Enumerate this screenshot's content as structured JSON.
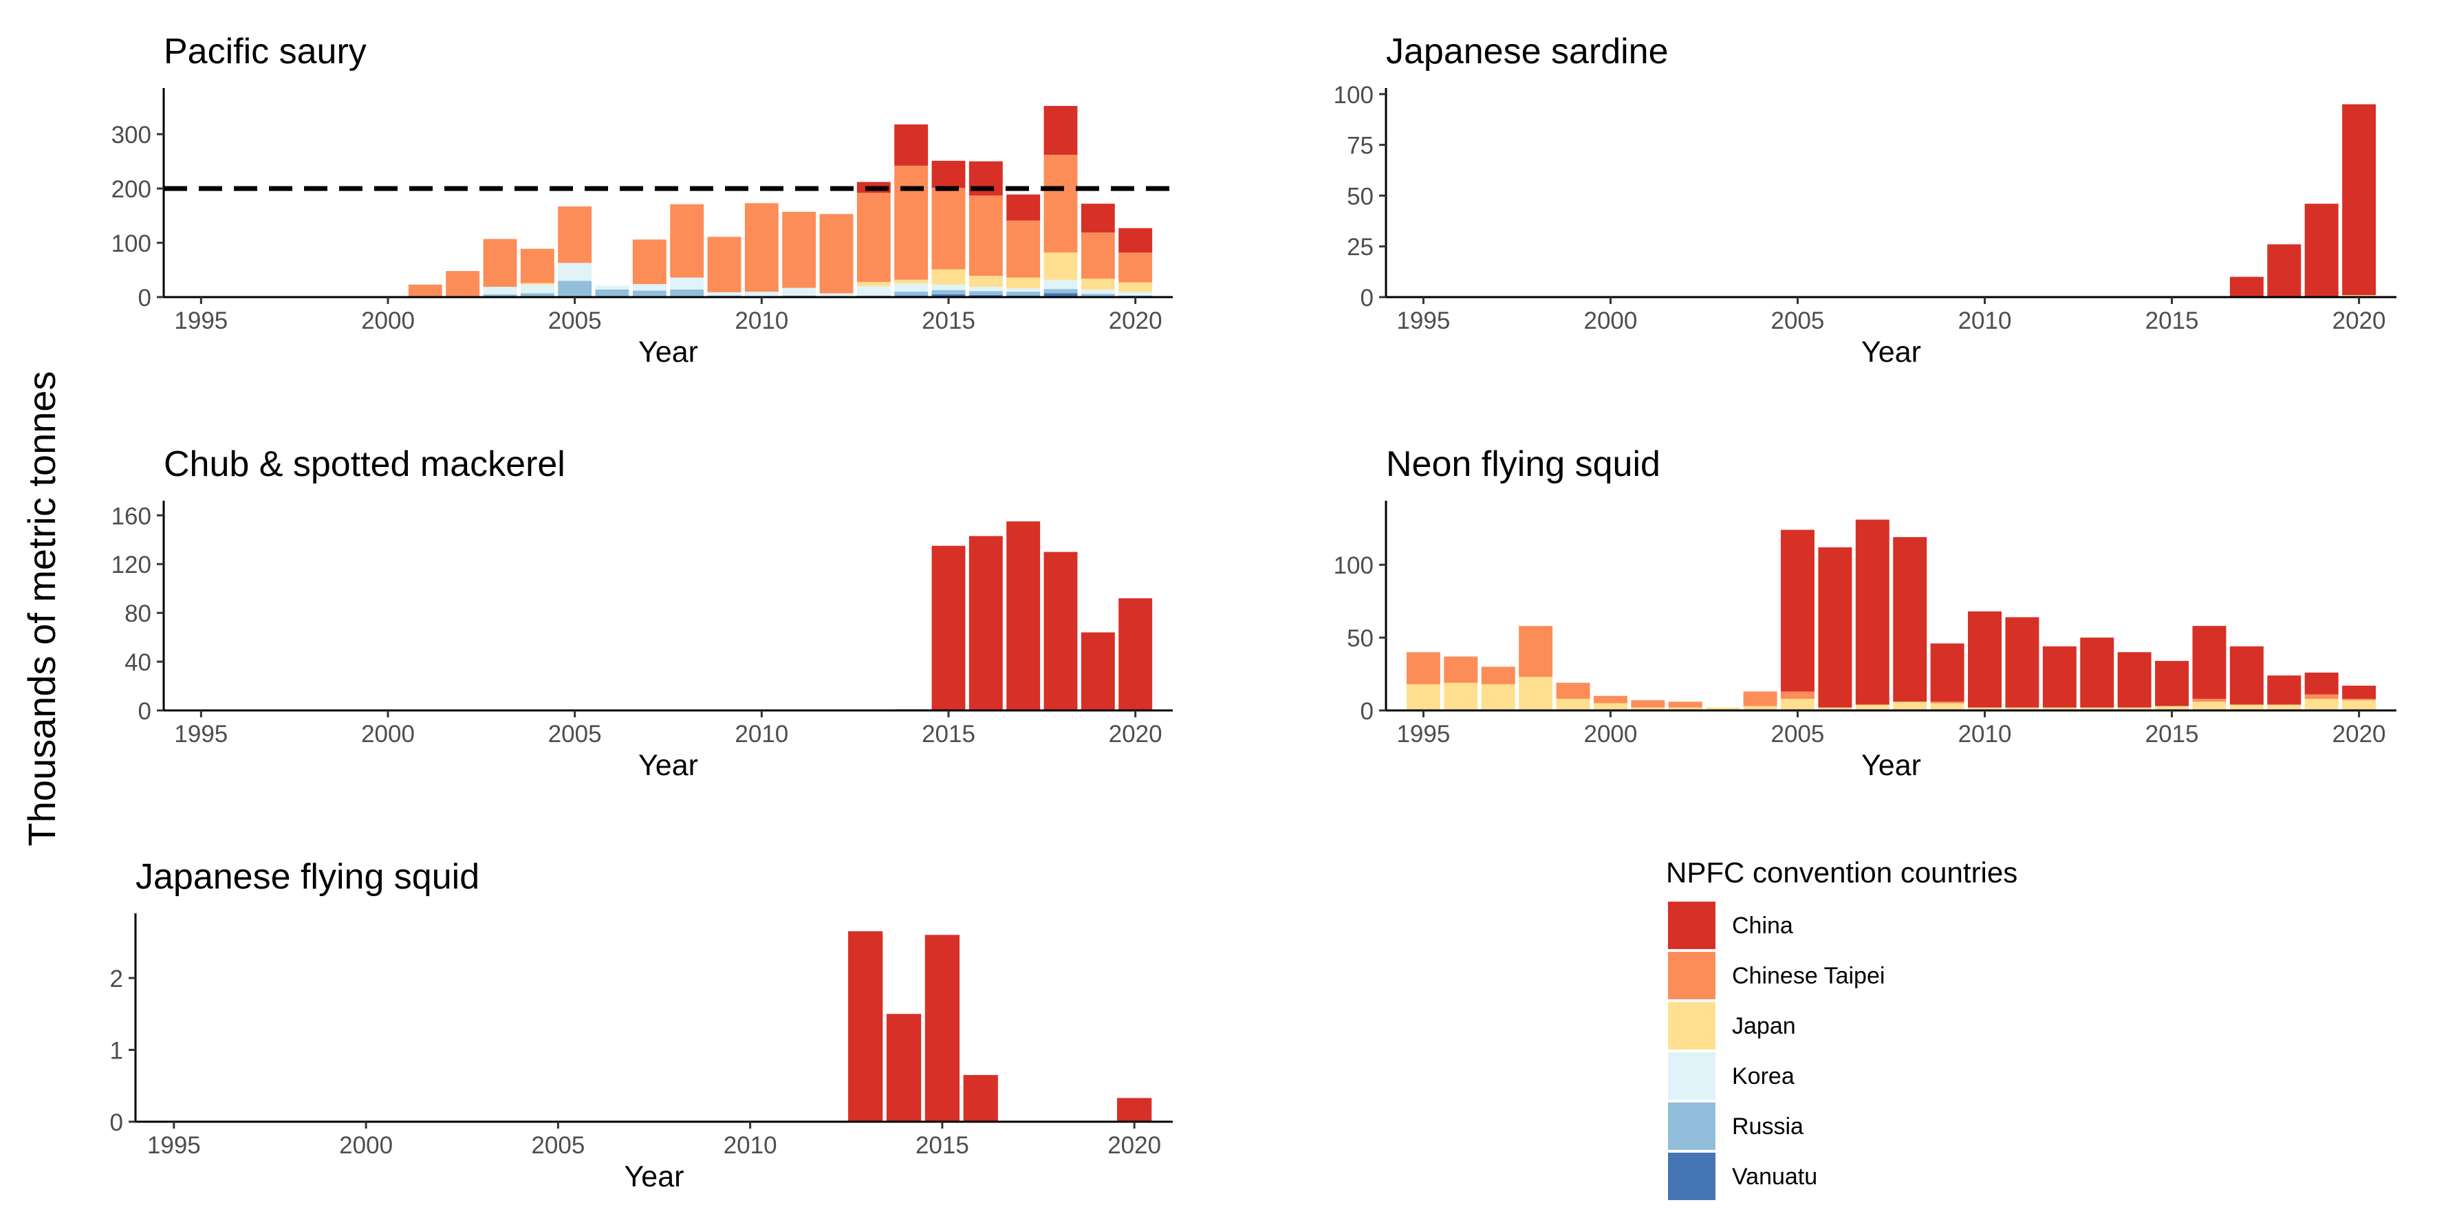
{
  "figure": {
    "ylabel": "Thousands of metric tonnes",
    "legend": {
      "title": "NPFC convention countries",
      "placement": "bottom-right",
      "entries": [
        {
          "name": "China",
          "color": "#d73027"
        },
        {
          "name": "Chinese Taipei",
          "color": "#fc8d59"
        },
        {
          "name": "Japan",
          "color": "#fee090"
        },
        {
          "name": "Korea",
          "color": "#e0f3f8"
        },
        {
          "name": "Russia",
          "color": "#91bfdb"
        },
        {
          "name": "Vanuatu",
          "color": "#4575b4"
        }
      ]
    }
  },
  "chart_data": [
    {
      "type": "bar",
      "stacked": true,
      "title": "Pacific saury",
      "xlabel": "Year",
      "ylabel": "",
      "xlim": [
        1994,
        2021
      ],
      "ylim": [
        0,
        385
      ],
      "xticks": [
        1995,
        2000,
        2005,
        2010,
        2015,
        2020
      ],
      "yticks": [
        0,
        100,
        200,
        300
      ],
      "reference_line": {
        "y": 200,
        "style": "dashed",
        "color": "#000000"
      },
      "years": [
        2001,
        2002,
        2003,
        2004,
        2005,
        2006,
        2007,
        2008,
        2009,
        2010,
        2011,
        2012,
        2013,
        2014,
        2015,
        2016,
        2017,
        2018,
        2019,
        2020
      ],
      "series": [
        {
          "name": "Vanuatu",
          "values": [
            0,
            0,
            0,
            0,
            0,
            0,
            0,
            0,
            0,
            0,
            0,
            0,
            0,
            3,
            5,
            4,
            3,
            7,
            2,
            1
          ]
        },
        {
          "name": "Russia",
          "values": [
            0,
            0,
            5,
            7,
            30,
            14,
            12,
            14,
            3,
            2,
            3,
            1,
            3,
            7,
            8,
            7,
            7,
            8,
            4,
            2
          ]
        },
        {
          "name": "Korea",
          "values": [
            0,
            0,
            14,
            16,
            33,
            7,
            12,
            22,
            6,
            8,
            14,
            6,
            17,
            15,
            10,
            8,
            6,
            17,
            8,
            7
          ]
        },
        {
          "name": "Japan",
          "values": [
            0,
            0,
            0,
            3,
            0,
            0,
            0,
            0,
            0,
            0,
            0,
            0,
            8,
            7,
            28,
            20,
            20,
            50,
            20,
            17
          ]
        },
        {
          "name": "Chinese Taipei",
          "values": [
            23,
            48,
            88,
            63,
            104,
            0,
            82,
            135,
            102,
            163,
            140,
            146,
            164,
            210,
            150,
            148,
            105,
            180,
            85,
            55
          ]
        },
        {
          "name": "China",
          "values": [
            0,
            0,
            0,
            0,
            0,
            0,
            0,
            0,
            0,
            0,
            0,
            0,
            20,
            76,
            50,
            63,
            48,
            90,
            53,
            45
          ]
        }
      ]
    },
    {
      "type": "bar",
      "stacked": true,
      "title": "Japanese sardine",
      "xlabel": "Year",
      "ylabel": "",
      "xlim": [
        1994,
        2021
      ],
      "ylim": [
        0,
        103
      ],
      "xticks": [
        1995,
        2000,
        2005,
        2010,
        2015,
        2020
      ],
      "yticks": [
        0,
        25,
        50,
        75,
        100
      ],
      "years": [
        2017,
        2018,
        2019,
        2020
      ],
      "series": [
        {
          "name": "Japan",
          "values": [
            0,
            0,
            0,
            1
          ]
        },
        {
          "name": "China",
          "values": [
            10,
            26,
            46,
            94
          ]
        }
      ]
    },
    {
      "type": "bar",
      "stacked": true,
      "title": "Chub & spotted mackerel",
      "xlabel": "Year",
      "ylabel": "",
      "xlim": [
        1994,
        2021
      ],
      "ylim": [
        0,
        172
      ],
      "xticks": [
        1995,
        2000,
        2005,
        2010,
        2015,
        2020
      ],
      "yticks": [
        0,
        40,
        80,
        120,
        160
      ],
      "years": [
        2014,
        2015,
        2016,
        2017,
        2018,
        2019,
        2020
      ],
      "series": [
        {
          "name": "Chinese Taipei",
          "values": [
            1,
            0,
            0,
            0,
            0,
            0,
            0
          ]
        },
        {
          "name": "China",
          "values": [
            0,
            135,
            143,
            155,
            130,
            64,
            92
          ]
        }
      ]
    },
    {
      "type": "bar",
      "stacked": true,
      "title": "Neon flying squid",
      "xlabel": "Year",
      "ylabel": "",
      "xlim": [
        1994,
        2021
      ],
      "ylim": [
        0,
        144
      ],
      "xticks": [
        1995,
        2000,
        2005,
        2010,
        2015,
        2020
      ],
      "yticks": [
        0,
        50,
        100
      ],
      "years": [
        1995,
        1996,
        1997,
        1998,
        1999,
        2000,
        2001,
        2002,
        2003,
        2004,
        2005,
        2006,
        2007,
        2008,
        2009,
        2010,
        2011,
        2012,
        2013,
        2014,
        2015,
        2016,
        2017,
        2018,
        2019,
        2020
      ],
      "series": [
        {
          "name": "Japan",
          "values": [
            18,
            19,
            18,
            23,
            8,
            5,
            2,
            2,
            2,
            3,
            8,
            2,
            4,
            6,
            5,
            2,
            2,
            2,
            2,
            2,
            3,
            6,
            4,
            4,
            8,
            7
          ]
        },
        {
          "name": "Chinese Taipei",
          "values": [
            22,
            18,
            12,
            35,
            11,
            5,
            5,
            4,
            0,
            10,
            5,
            0,
            0,
            0,
            1,
            0,
            0,
            0,
            0,
            0,
            0,
            2,
            0,
            0,
            3,
            1
          ]
        },
        {
          "name": "China",
          "values": [
            0,
            0,
            0,
            0,
            0,
            0,
            0,
            0,
            0,
            0,
            111,
            110,
            127,
            113,
            40,
            66,
            62,
            42,
            48,
            38,
            31,
            50,
            40,
            20,
            15,
            9
          ]
        }
      ]
    },
    {
      "type": "bar",
      "stacked": true,
      "title": "Japanese flying squid",
      "xlabel": "Year",
      "ylabel": "",
      "xlim": [
        1994,
        2021
      ],
      "ylim": [
        0,
        2.9
      ],
      "xticks": [
        1995,
        2000,
        2005,
        2010,
        2015,
        2020
      ],
      "yticks": [
        0,
        1,
        2
      ],
      "years": [
        2013,
        2014,
        2015,
        2016,
        2020
      ],
      "series": [
        {
          "name": "China",
          "values": [
            2.65,
            1.5,
            2.6,
            0.65,
            0.33
          ]
        }
      ]
    }
  ]
}
